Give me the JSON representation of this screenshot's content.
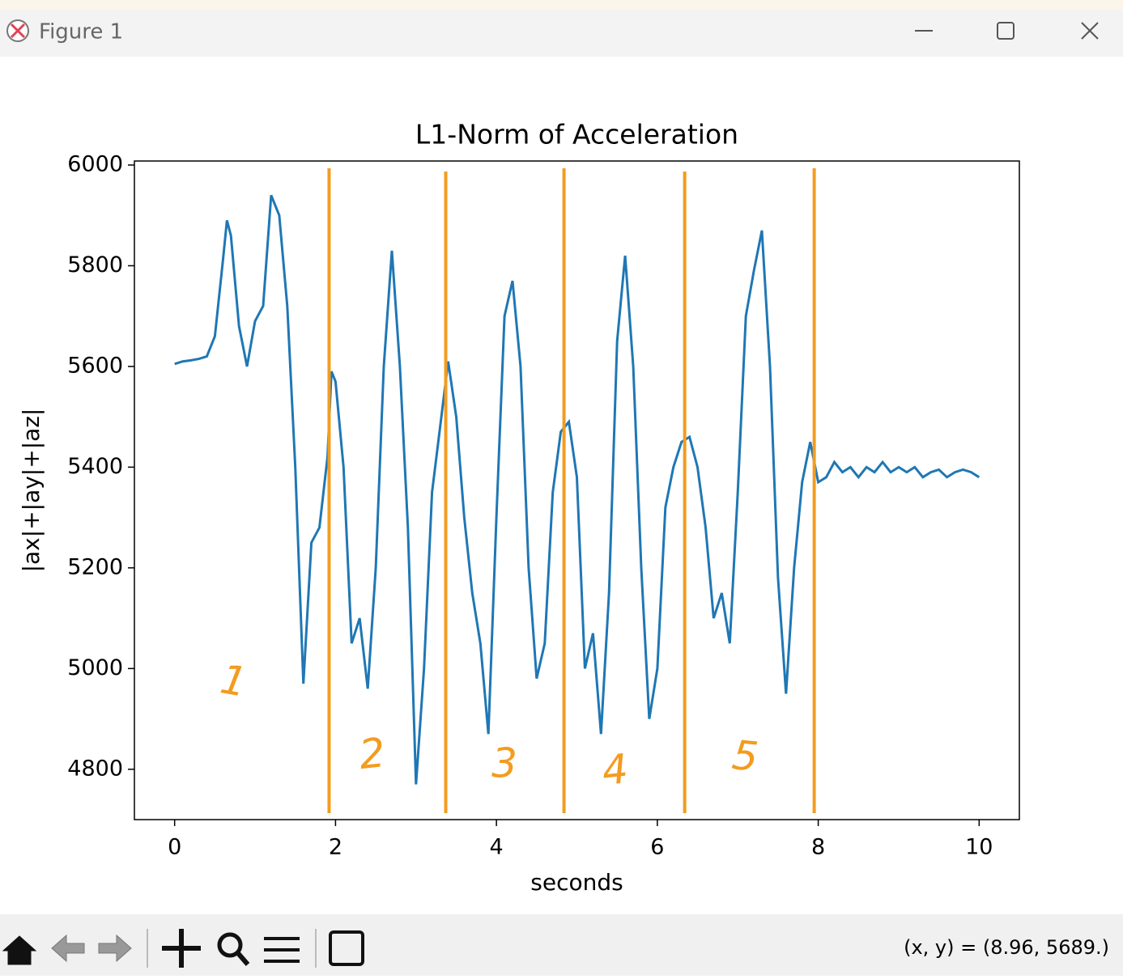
{
  "window": {
    "title": "Figure 1",
    "status": "(x, y) = (8.96, 5689.)"
  },
  "chart_data": {
    "type": "line",
    "title": "L1-Norm of Acceleration",
    "x_label": "seconds",
    "y_label": "|ax|+|ay|+|az|",
    "x": [
      0,
      0.1,
      0.2,
      0.3,
      0.4,
      0.5,
      0.6,
      0.65,
      0.7,
      0.8,
      0.9,
      1.0,
      1.1,
      1.2,
      1.3,
      1.4,
      1.5,
      1.6,
      1.7,
      1.8,
      1.9,
      1.95,
      2.0,
      2.1,
      2.2,
      2.3,
      2.4,
      2.5,
      2.6,
      2.7,
      2.8,
      2.9,
      3.0,
      3.1,
      3.2,
      3.3,
      3.4,
      3.5,
      3.6,
      3.7,
      3.8,
      3.9,
      4.0,
      4.1,
      4.2,
      4.3,
      4.4,
      4.5,
      4.6,
      4.7,
      4.8,
      4.9,
      5.0,
      5.1,
      5.2,
      5.3,
      5.4,
      5.5,
      5.6,
      5.7,
      5.8,
      5.9,
      6.0,
      6.1,
      6.2,
      6.3,
      6.4,
      6.5,
      6.6,
      6.7,
      6.8,
      6.9,
      7.0,
      7.1,
      7.2,
      7.3,
      7.4,
      7.5,
      7.6,
      7.7,
      7.8,
      7.9,
      8.0,
      8.1,
      8.2,
      8.3,
      8.4,
      8.5,
      8.6,
      8.7,
      8.8,
      8.9,
      9.0,
      9.1,
      9.2,
      9.3,
      9.4,
      9.5,
      9.6,
      9.7,
      9.8,
      9.9,
      10.0
    ],
    "series": [
      {
        "name": "|ax|+|ay|+|az|",
        "color": "#1f77b4",
        "values": [
          5605,
          5610,
          5612,
          5615,
          5620,
          5660,
          5810,
          5890,
          5860,
          5680,
          5600,
          5690,
          5720,
          5940,
          5900,
          5720,
          5400,
          4970,
          5250,
          5280,
          5420,
          5590,
          5570,
          5400,
          5050,
          5100,
          4960,
          5200,
          5600,
          5830,
          5600,
          5280,
          4770,
          5000,
          5350,
          5480,
          5610,
          5500,
          5300,
          5150,
          5050,
          4870,
          5300,
          5700,
          5770,
          5600,
          5200,
          4980,
          5050,
          5350,
          5470,
          5490,
          5380,
          5000,
          5070,
          4870,
          5150,
          5650,
          5820,
          5600,
          5200,
          4900,
          5000,
          5320,
          5400,
          5450,
          5460,
          5400,
          5280,
          5100,
          5150,
          5050,
          5350,
          5700,
          5790,
          5870,
          5600,
          5180,
          4950,
          5200,
          5370,
          5450,
          5370,
          5380,
          5410,
          5390,
          5400,
          5380,
          5400,
          5390,
          5410,
          5390,
          5400,
          5390,
          5400,
          5380,
          5390,
          5395,
          5380,
          5390,
          5395,
          5390,
          5380
        ]
      }
    ],
    "xlim": [
      -0.5,
      10.5
    ],
    "ylim": [
      4700,
      6008
    ],
    "xticks": [
      0,
      2,
      4,
      6,
      8,
      10
    ],
    "yticks": [
      4800,
      5000,
      5200,
      5400,
      5600,
      5800,
      6000
    ],
    "vlines": [
      1.92,
      3.37,
      4.84,
      6.34,
      7.95
    ],
    "vline_color": "#f39c1f",
    "annotations": [
      "1",
      "2",
      "3",
      "4",
      "5"
    ]
  }
}
